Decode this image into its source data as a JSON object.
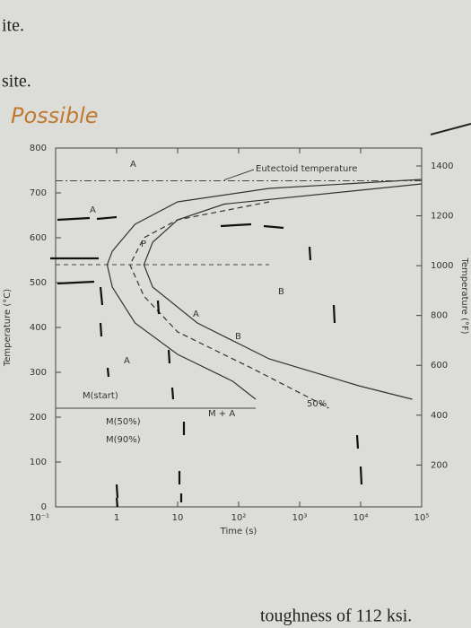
{
  "page_fragments": [
    "ite.",
    "site.",
    "toughness of 112 ksi."
  ],
  "handwriting": "Possible",
  "chart_data": {
    "type": "ttt",
    "xlabel": "Time (s)",
    "ylabel": "Temperature (°C)",
    "y2label": "Temperature (°F)",
    "xscale": "log",
    "xlim": [
      0.1,
      100000
    ],
    "xticks": [
      {
        "value": 0.1,
        "label": "10⁻¹"
      },
      1,
      10,
      {
        "value": 100,
        "label": "10²"
      },
      {
        "value": 1000,
        "label": "10³"
      },
      {
        "value": 10000,
        "label": "10⁴"
      },
      {
        "value": 100000,
        "label": "10⁵"
      }
    ],
    "ylim": [
      0,
      800
    ],
    "yticks": [
      0,
      100,
      200,
      300,
      400,
      500,
      600,
      700,
      800
    ],
    "y2lim": [
      32,
      1472
    ],
    "y2ticks": [
      200,
      400,
      600,
      800,
      1000,
      1200,
      1400
    ],
    "series": [
      {
        "style": "solid",
        "x": [
          100000,
          316,
          10,
          2,
          0.85,
          0.7,
          0.85,
          2,
          10,
          80,
          190
        ],
        "values": [
          730,
          710,
          680,
          630,
          570,
          540,
          490,
          410,
          340,
          280,
          240
        ]
      },
      {
        "style": "dashed",
        "x": [
          316,
          10,
          2.8,
          1.65,
          2.8,
          10,
          160,
          1600,
          3000
        ],
        "values": [
          680,
          640,
          600,
          540,
          470,
          390,
          310,
          240,
          220
        ]
      },
      {
        "style": "solid",
        "x": [
          100000,
          58,
          10,
          3.9,
          2.8,
          3.9,
          21,
          316,
          9300,
          70000
        ],
        "values": [
          720,
          675,
          640,
          590,
          540,
          490,
          410,
          330,
          270,
          240
        ]
      }
    ],
    "reference_lines": [
      {
        "value": 727,
        "label": "Eutectoid temperature"
      },
      {
        "value": 220,
        "label": "M(start)"
      },
      {
        "value": 540
      }
    ],
    "annotations": [
      "A",
      "A",
      "P",
      "B",
      "A",
      "B",
      "A",
      "M + A",
      "M(50%)",
      "M(90%)",
      "50%"
    ]
  }
}
